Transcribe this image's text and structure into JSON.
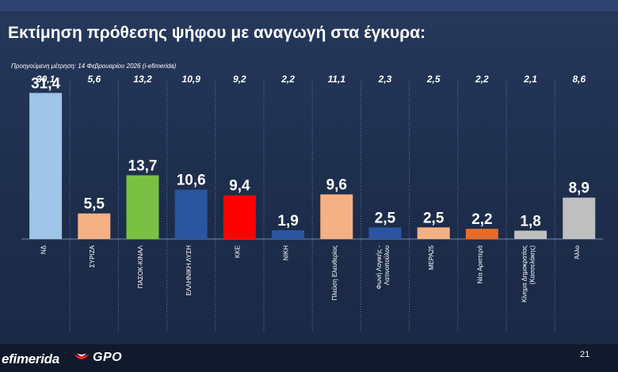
{
  "header": {
    "title": "Εκτίμηση πρόθεσης ψήφου με αναγωγή στα έγκυρα:",
    "previous_note": "Προηγούμενη μέτρηση: 14 Φεβρουαρίου 2026 (i-efimerida)"
  },
  "footer": {
    "brand": "efimerida",
    "pollster": "GPO",
    "page_number": "21"
  },
  "chart_data": {
    "type": "bar",
    "title": "Εκτίμηση πρόθεσης ψήφου με αναγωγή στα έγκυρα:",
    "xlabel": "",
    "ylabel": "",
    "ylim": [
      0,
      33
    ],
    "grid": false,
    "categories": [
      [
        "ΝΔ"
      ],
      [
        "ΣΥΡΙΖΑ"
      ],
      [
        "ΠΑΣΟΚ-ΚΙΝΑΛ"
      ],
      [
        "ΕΛΛΗΝΙΚΗ ΛΥΣΗ"
      ],
      [
        "ΚΚΕ"
      ],
      [
        "ΝΙΚΗ"
      ],
      [
        "Πλεύση Ελευθερίας"
      ],
      [
        "Φωνή Λογικής -",
        "Λατινοπούλου"
      ],
      [
        "ΜΕΡΑ25"
      ],
      [
        "Νέα Αριστερά"
      ],
      [
        "Κίνημα Δημοκρατίας",
        "(Κασσελάκης)"
      ],
      [
        "Άλλο"
      ]
    ],
    "values": [
      "31,4",
      "5,5",
      "13,7",
      "10,6",
      "9,4",
      "1,9",
      "9,6",
      "2,5",
      "2,5",
      "2,2",
      "1,8",
      "8,9"
    ],
    "previous_values": [
      "30,1",
      "5,6",
      "13,2",
      "10,9",
      "9,2",
      "2,2",
      "11,1",
      "2,3",
      "2,5",
      "2,2",
      "2,1",
      "8,6"
    ],
    "colors": [
      "#9fc5e8",
      "#f4b183",
      "#7ac143",
      "#2a56a0",
      "#ff0000",
      "#2a56a0",
      "#f4b183",
      "#2a56a0",
      "#f4b183",
      "#e36c2c",
      "#bfbfbf",
      "#bfbfbf"
    ]
  }
}
